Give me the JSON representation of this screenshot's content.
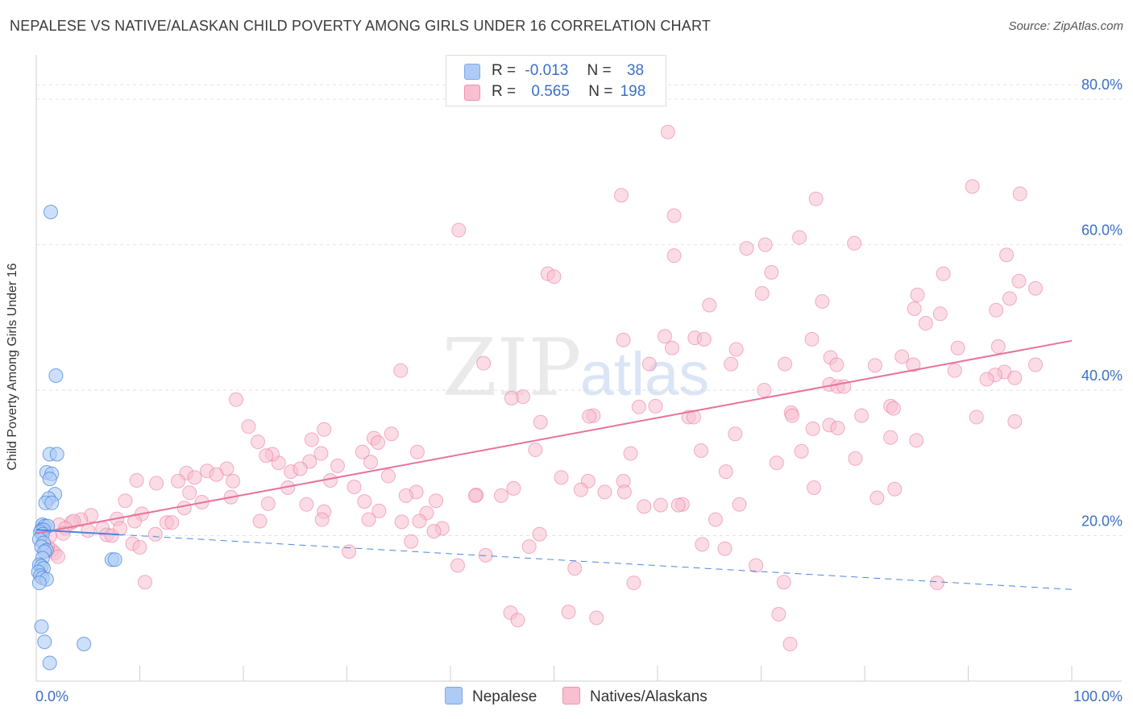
{
  "title": "NEPALESE VS NATIVE/ALASKAN CHILD POVERTY AMONG GIRLS UNDER 16 CORRELATION CHART",
  "source": "Source: ZipAtlas.com",
  "watermark": {
    "zip": "ZIP",
    "atlas": "atlas"
  },
  "legend": {
    "rows": [
      {
        "r_label": "R =",
        "r_value": "-0.013",
        "n_label": "N =",
        "n_value": "38",
        "color": "#aecbf5"
      },
      {
        "r_label": "R =",
        "r_value": "0.565",
        "n_label": "N =",
        "n_value": "198",
        "color": "#f8bfd0"
      }
    ]
  },
  "bottom_legend": {
    "series_a": "Nepalese",
    "series_b": "Natives/Alaskans"
  },
  "chart_data": {
    "type": "scatter",
    "title": "NEPALESE VS NATIVE/ALASKAN CHILD POVERTY AMONG GIRLS UNDER 16 CORRELATION CHART",
    "ylabel": "Child Poverty Among Girls Under 16",
    "xlabel": "",
    "xlim": [
      0,
      100
    ],
    "ylim": [
      0,
      85
    ],
    "x_tick_labels": [
      "0.0%",
      "100.0%"
    ],
    "y_tick_labels": [
      "20.0%",
      "40.0%",
      "60.0%",
      "80.0%"
    ],
    "y_ticks": [
      20,
      40,
      60,
      80
    ],
    "grid": true,
    "legend_position": "top-center",
    "colors": {
      "nepalese": "#4a86e0",
      "nepalese_fill": "#aecbf5",
      "natives": "#e8729a",
      "natives_fill": "#f8bfd0",
      "axis_label": "#3b6fc6",
      "grid": "#e2e2e2"
    },
    "series": [
      {
        "name": "Nepalese",
        "trend": {
          "x": [
            0,
            100
          ],
          "y": [
            20.8,
            12.6
          ],
          "solid_until_x": 8
        },
        "points": [
          [
            1.4,
            64.5
          ],
          [
            1.9,
            42.0
          ],
          [
            1.3,
            31.2
          ],
          [
            2.0,
            31.2
          ],
          [
            1.0,
            28.7
          ],
          [
            1.5,
            28.5
          ],
          [
            1.3,
            27.8
          ],
          [
            1.8,
            25.7
          ],
          [
            1.2,
            25.1
          ],
          [
            0.9,
            24.5
          ],
          [
            1.5,
            24.5
          ],
          [
            0.6,
            21.5
          ],
          [
            0.8,
            21.3
          ],
          [
            1.1,
            21.3
          ],
          [
            0.5,
            20.8
          ],
          [
            0.7,
            20.8
          ],
          [
            0.4,
            20.5
          ],
          [
            0.6,
            20.2
          ],
          [
            0.3,
            19.5
          ],
          [
            0.7,
            19.0
          ],
          [
            0.5,
            18.5
          ],
          [
            1.0,
            18.0
          ],
          [
            0.8,
            17.8
          ],
          [
            0.6,
            16.9
          ],
          [
            0.3,
            16.0
          ],
          [
            0.5,
            15.8
          ],
          [
            0.7,
            15.5
          ],
          [
            0.2,
            15.0
          ],
          [
            0.4,
            14.5
          ],
          [
            0.6,
            14.2
          ],
          [
            1.0,
            14.0
          ],
          [
            0.3,
            13.5
          ],
          [
            7.3,
            16.7
          ],
          [
            7.6,
            16.7
          ],
          [
            0.5,
            7.5
          ],
          [
            0.8,
            5.4
          ],
          [
            4.6,
            5.1
          ],
          [
            1.3,
            2.5
          ]
        ]
      },
      {
        "name": "Natives/Alaskans",
        "trend": {
          "x": [
            0,
            100
          ],
          "y": [
            20.3,
            46.8
          ]
        },
        "points": [
          [
            61.0,
            75.5
          ],
          [
            90.4,
            68.0
          ],
          [
            95.0,
            67.0
          ],
          [
            56.5,
            66.8
          ],
          [
            75.3,
            66.3
          ],
          [
            61.6,
            64.0
          ],
          [
            40.8,
            62.0
          ],
          [
            73.7,
            61.0
          ],
          [
            79.0,
            60.2
          ],
          [
            70.4,
            60.0
          ],
          [
            68.6,
            59.5
          ],
          [
            93.7,
            58.6
          ],
          [
            61.6,
            58.5
          ],
          [
            49.4,
            56.0
          ],
          [
            71.0,
            56.2
          ],
          [
            87.6,
            56.0
          ],
          [
            50.0,
            55.6
          ],
          [
            94.9,
            55.0
          ],
          [
            96.5,
            54.0
          ],
          [
            70.1,
            53.3
          ],
          [
            85.1,
            53.1
          ],
          [
            75.9,
            52.2
          ],
          [
            65.0,
            51.7
          ],
          [
            84.8,
            51.2
          ],
          [
            92.7,
            51.0
          ],
          [
            87.3,
            50.5
          ],
          [
            94.0,
            52.6
          ],
          [
            85.9,
            49.2
          ],
          [
            74.9,
            47.0
          ],
          [
            56.7,
            46.9
          ],
          [
            63.6,
            47.2
          ],
          [
            60.7,
            47.4
          ],
          [
            64.5,
            47.0
          ],
          [
            67.6,
            45.6
          ],
          [
            89.0,
            45.8
          ],
          [
            92.9,
            46.0
          ],
          [
            83.6,
            44.6
          ],
          [
            61.4,
            45.8
          ],
          [
            76.7,
            44.5
          ],
          [
            59.2,
            43.6
          ],
          [
            67.1,
            43.6
          ],
          [
            72.3,
            43.6
          ],
          [
            84.7,
            43.5
          ],
          [
            43.2,
            43.7
          ],
          [
            77.3,
            43.5
          ],
          [
            88.7,
            42.7
          ],
          [
            96.5,
            43.5
          ],
          [
            81.0,
            43.4
          ],
          [
            93.5,
            42.5
          ],
          [
            92.6,
            42.1
          ],
          [
            91.8,
            41.5
          ],
          [
            76.6,
            40.8
          ],
          [
            94.5,
            41.7
          ],
          [
            35.2,
            42.7
          ],
          [
            77.4,
            40.5
          ],
          [
            70.3,
            40.0
          ],
          [
            78.0,
            40.5
          ],
          [
            47.0,
            39.1
          ],
          [
            45.9,
            38.9
          ],
          [
            59.8,
            37.8
          ],
          [
            58.2,
            37.7
          ],
          [
            90.8,
            36.3
          ],
          [
            94.5,
            35.7
          ],
          [
            82.5,
            37.8
          ],
          [
            82.8,
            37.5
          ],
          [
            79.7,
            36.5
          ],
          [
            72.9,
            36.9
          ],
          [
            73.0,
            36.5
          ],
          [
            63.0,
            36.3
          ],
          [
            63.5,
            36.3
          ],
          [
            53.8,
            36.5
          ],
          [
            53.4,
            36.4
          ],
          [
            48.7,
            35.6
          ],
          [
            76.6,
            35.2
          ],
          [
            77.4,
            34.8
          ],
          [
            75.0,
            34.7
          ],
          [
            67.5,
            34.0
          ],
          [
            85.0,
            33.1
          ],
          [
            48.2,
            31.8
          ],
          [
            57.4,
            31.3
          ],
          [
            64.2,
            31.7
          ],
          [
            73.9,
            31.6
          ],
          [
            82.5,
            33.5
          ],
          [
            71.5,
            30.0
          ],
          [
            79.1,
            30.6
          ],
          [
            66.6,
            28.8
          ],
          [
            50.7,
            28.0
          ],
          [
            53.3,
            27.5
          ],
          [
            56.7,
            27.5
          ],
          [
            82.9,
            26.4
          ],
          [
            81.2,
            25.2
          ],
          [
            75.1,
            26.6
          ],
          [
            52.6,
            26.3
          ],
          [
            54.9,
            26.0
          ],
          [
            56.8,
            26.0
          ],
          [
            46.1,
            26.5
          ],
          [
            44.9,
            25.5
          ],
          [
            42.5,
            25.6
          ],
          [
            36.7,
            26.0
          ],
          [
            35.7,
            25.5
          ],
          [
            38.6,
            24.8
          ],
          [
            62.4,
            24.3
          ],
          [
            62.0,
            24.2
          ],
          [
            67.9,
            24.3
          ],
          [
            60.3,
            24.2
          ],
          [
            58.7,
            24.0
          ],
          [
            33.1,
            23.4
          ],
          [
            27.8,
            23.3
          ],
          [
            31.7,
            24.7
          ],
          [
            37.7,
            23.1
          ],
          [
            26.1,
            24.3
          ],
          [
            22.4,
            24.4
          ],
          [
            18.8,
            25.3
          ],
          [
            16.0,
            24.6
          ],
          [
            14.3,
            23.8
          ],
          [
            10.2,
            23.0
          ],
          [
            8.6,
            24.8
          ],
          [
            7.8,
            22.3
          ],
          [
            5.3,
            22.8
          ],
          [
            4.3,
            22.2
          ],
          [
            3.4,
            21.8
          ],
          [
            3.6,
            22.0
          ],
          [
            2.2,
            21.5
          ],
          [
            2.8,
            21.0
          ],
          [
            6.4,
            21.0
          ],
          [
            5.0,
            20.7
          ],
          [
            6.8,
            20.1
          ],
          [
            7.3,
            20.0
          ],
          [
            8.1,
            21.0
          ],
          [
            9.5,
            22.0
          ],
          [
            12.6,
            21.8
          ],
          [
            13.1,
            21.8
          ],
          [
            11.5,
            20.2
          ],
          [
            37.0,
            22.0
          ],
          [
            32.1,
            22.2
          ],
          [
            21.6,
            22.0
          ],
          [
            27.6,
            22.2
          ],
          [
            39.2,
            21.0
          ],
          [
            38.4,
            20.6
          ],
          [
            48.6,
            20.2
          ],
          [
            36.2,
            19.2
          ],
          [
            65.6,
            22.2
          ],
          [
            47.6,
            18.5
          ],
          [
            9.3,
            18.9
          ],
          [
            10.0,
            18.4
          ],
          [
            1.5,
            18.0
          ],
          [
            1.8,
            17.6
          ],
          [
            2.1,
            17.1
          ],
          [
            1.1,
            18.5
          ],
          [
            1.3,
            19.9
          ],
          [
            2.6,
            20.3
          ],
          [
            30.2,
            17.8
          ],
          [
            64.3,
            18.8
          ],
          [
            66.5,
            18.2
          ],
          [
            40.7,
            15.9
          ],
          [
            52.0,
            15.5
          ],
          [
            69.5,
            15.9
          ],
          [
            72.2,
            13.6
          ],
          [
            87.0,
            13.5
          ],
          [
            57.7,
            13.5
          ],
          [
            10.5,
            13.6
          ],
          [
            51.4,
            9.5
          ],
          [
            45.8,
            9.4
          ],
          [
            46.5,
            8.4
          ],
          [
            54.1,
            8.7
          ],
          [
            71.7,
            9.2
          ],
          [
            72.8,
            5.1
          ],
          [
            42.4,
            25.5
          ],
          [
            29.1,
            29.6
          ],
          [
            23.4,
            30.0
          ],
          [
            24.6,
            28.8
          ],
          [
            26.4,
            30.2
          ],
          [
            27.5,
            31.3
          ],
          [
            25.5,
            29.2
          ],
          [
            22.8,
            31.2
          ],
          [
            34.0,
            28.2
          ],
          [
            28.4,
            27.6
          ],
          [
            30.7,
            26.7
          ],
          [
            24.3,
            26.6
          ],
          [
            19.0,
            27.5
          ],
          [
            26.6,
            33.2
          ],
          [
            20.5,
            35.0
          ],
          [
            18.4,
            29.2
          ],
          [
            16.5,
            28.9
          ],
          [
            17.4,
            28.4
          ],
          [
            14.5,
            28.6
          ],
          [
            13.7,
            27.5
          ],
          [
            11.6,
            27.2
          ],
          [
            9.7,
            27.6
          ],
          [
            15.3,
            28.0
          ],
          [
            14.8,
            25.9
          ],
          [
            32.6,
            33.4
          ],
          [
            33.0,
            32.8
          ],
          [
            31.5,
            31.5
          ],
          [
            34.3,
            34.0
          ],
          [
            36.8,
            31.5
          ],
          [
            27.8,
            34.6
          ],
          [
            21.4,
            32.9
          ],
          [
            19.3,
            38.7
          ],
          [
            22.2,
            31.0
          ],
          [
            32.3,
            30.1
          ],
          [
            35.3,
            21.9
          ],
          [
            43.4,
            17.3
          ]
        ]
      }
    ]
  }
}
